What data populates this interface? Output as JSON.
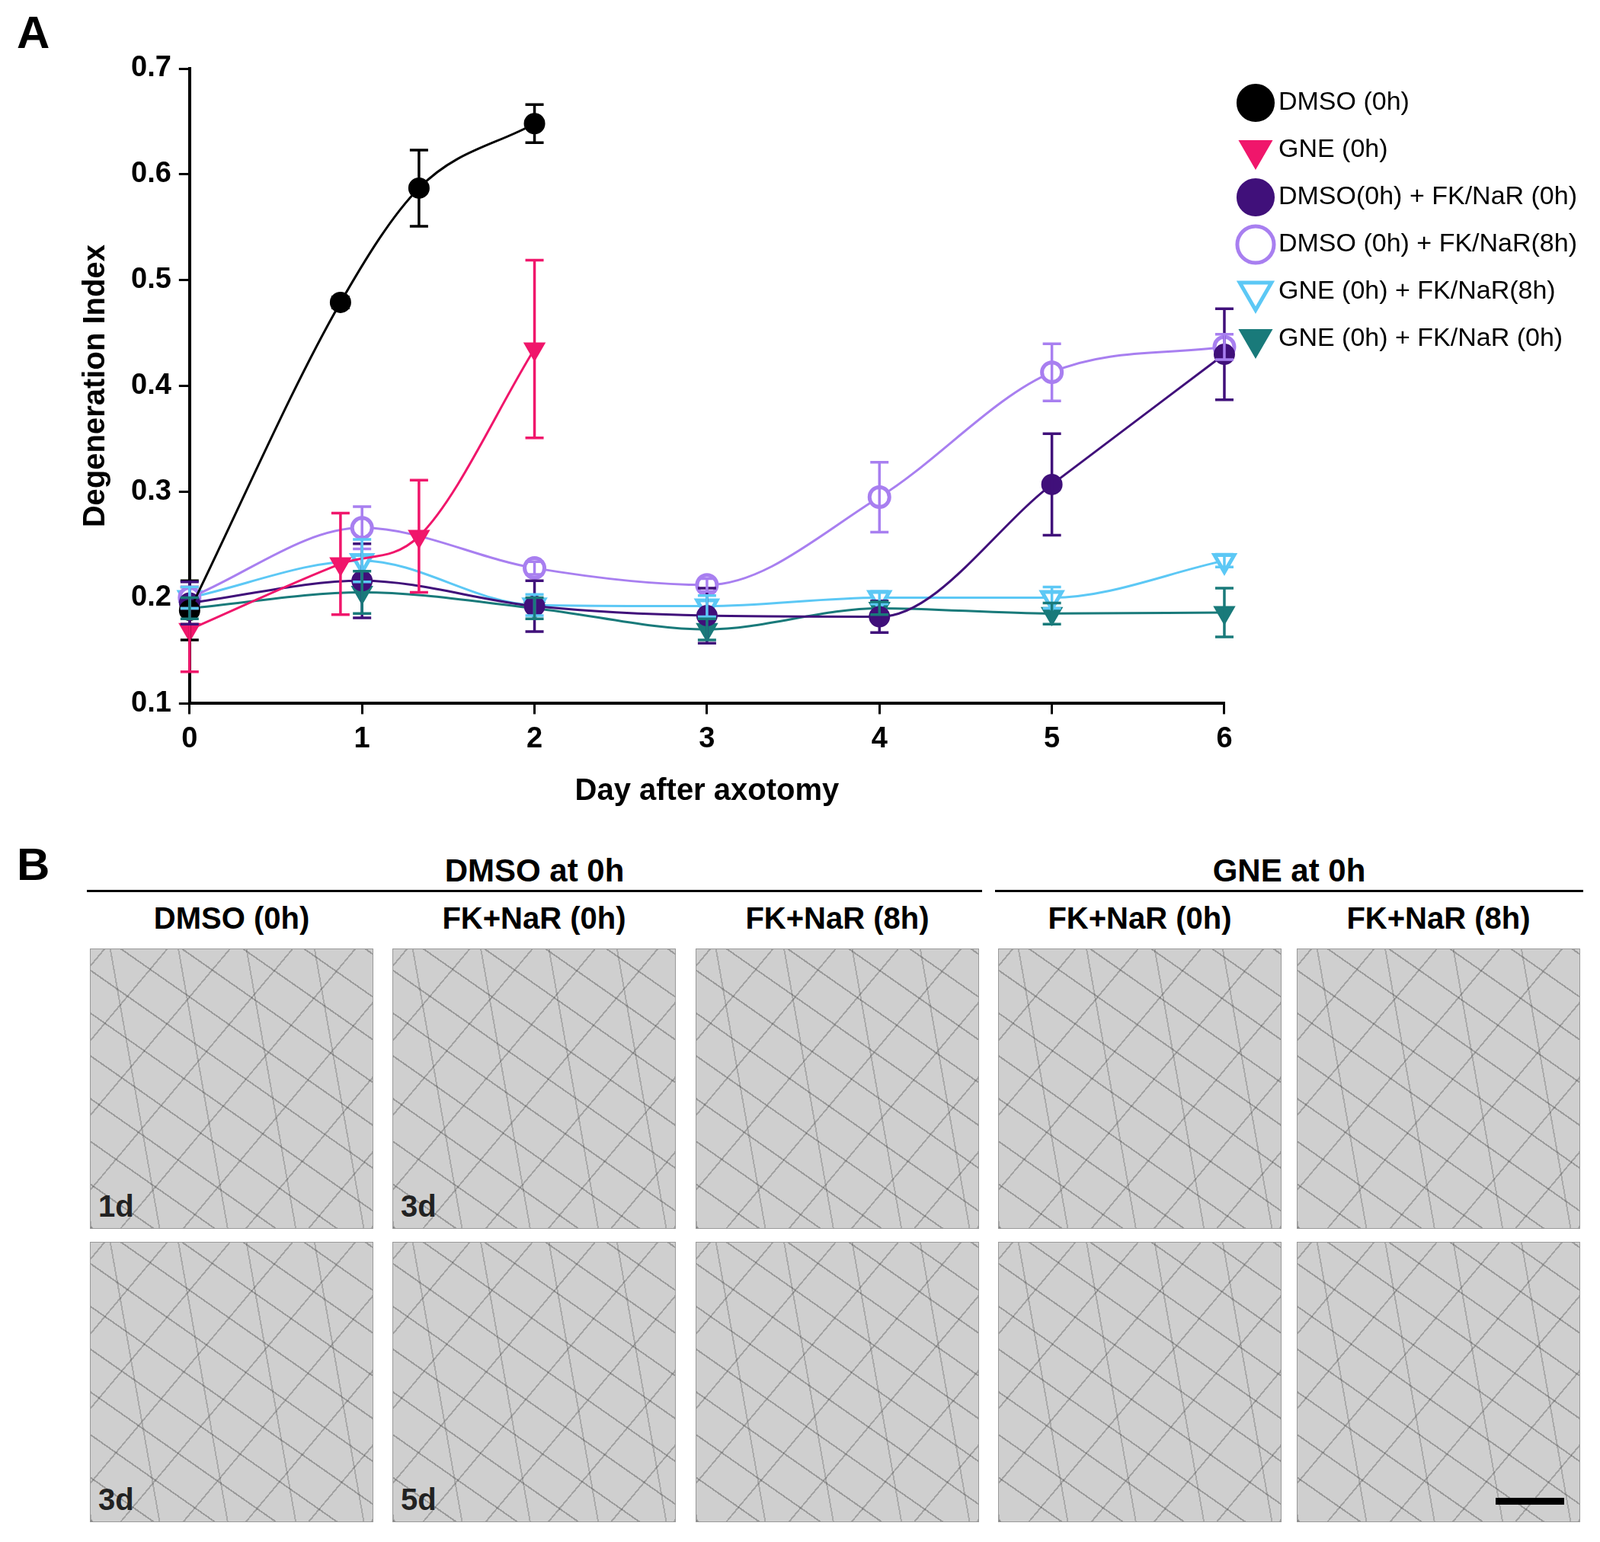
{
  "panel_labels": [
    "A",
    "B"
  ],
  "chart_data": {
    "type": "line",
    "x_label": "Day after axotomy",
    "y_label": "Degeneration Index",
    "xlim": [
      0,
      6
    ],
    "xticks": [
      0,
      1,
      2,
      3,
      4,
      5,
      6
    ],
    "ylim": [
      0.1,
      0.7
    ],
    "yticks": [
      0.1,
      0.2,
      0.3,
      0.4,
      0.5,
      0.6,
      0.7
    ],
    "grid": false,
    "legend": "right",
    "series": [
      {
        "name": "DMSO (0h)",
        "color": "#000000",
        "marker": "circle",
        "x": [
          0,
          0.875,
          1.33,
          2
        ],
        "values": [
          0.188,
          0.479,
          0.587,
          0.648
        ],
        "errors": [
          0.028,
          0.005,
          0.036,
          0.018
        ]
      },
      {
        "name": "GNE (0h)",
        "color": "#f0166b",
        "marker": "triangle_down",
        "x": [
          0,
          0.875,
          1.33,
          2
        ],
        "values": [
          0.17,
          0.232,
          0.258,
          0.435
        ],
        "errors": [
          0.04,
          0.048,
          0.053,
          0.084
        ]
      },
      {
        "name": "DMSO(0h) + FK/NaR (0h)",
        "color": "#40107a",
        "marker": "circle",
        "x": [
          0,
          1,
          2,
          3,
          4,
          5,
          6
        ],
        "values": [
          0.195,
          0.216,
          0.192,
          0.183,
          0.182,
          0.307,
          0.43
        ],
        "errors": [
          0.02,
          0.035,
          0.024,
          0.026,
          0.015,
          0.048,
          0.043
        ]
      },
      {
        "name": "DMSO (0h) + FK/NaR(8h)",
        "color": "#a87ff0",
        "marker": "open_circle",
        "x": [
          0,
          1,
          2,
          3,
          4,
          5,
          6
        ],
        "values": [
          0.2,
          0.266,
          0.228,
          0.212,
          0.295,
          0.413,
          0.437
        ],
        "errors": [
          0.01,
          0.02,
          0.006,
          0.006,
          0.033,
          0.027,
          0.012
        ]
      },
      {
        "name": "GNE (0h) + FK/NaR(8h)",
        "color": "#5cc8f5",
        "marker": "open_triangle_down",
        "x": [
          0,
          1,
          2,
          3,
          4,
          5,
          6
        ],
        "values": [
          0.2,
          0.235,
          0.193,
          0.192,
          0.2,
          0.2,
          0.235
        ],
        "errors": [
          0.01,
          0.02,
          0.01,
          0.01,
          0.006,
          0.01,
          0.006
        ]
      },
      {
        "name": "GNE (0h) + FK/NaR (0h)",
        "color": "#197a7a",
        "marker": "triangle_down",
        "x": [
          0,
          1,
          2,
          3,
          4,
          5,
          6
        ],
        "values": [
          0.19,
          0.205,
          0.19,
          0.17,
          0.19,
          0.185,
          0.186
        ],
        "errors": [
          0.01,
          0.02,
          0.01,
          0.01,
          0.006,
          0.01,
          0.023
        ]
      }
    ]
  },
  "images": {
    "group_headers": [
      {
        "label": "DMSO at 0h",
        "columns": 3
      },
      {
        "label": "GNE at 0h",
        "columns": 2
      }
    ],
    "columns": [
      "DMSO (0h)",
      "FK+NaR (0h)",
      "FK+NaR (8h)",
      "FK+NaR (0h)",
      "FK+NaR (8h)"
    ],
    "row_labels": [
      [
        "1d",
        "3d",
        null,
        null,
        null
      ],
      [
        "3d",
        "5d",
        null,
        null,
        null
      ]
    ]
  }
}
